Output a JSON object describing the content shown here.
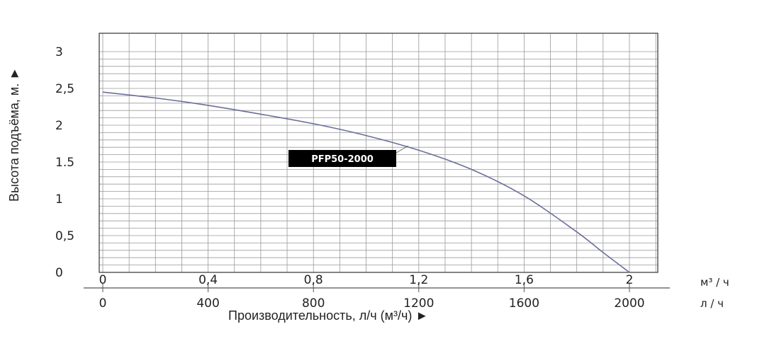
{
  "chart_data": {
    "type": "line",
    "ylabel": "Высота подъёма, м. ►",
    "xlabel": "Производительность, л/ч (м³/ч) ►",
    "x_unit_top": "м³ / ч",
    "x_unit_bottom": "л / ч",
    "ylim": [
      0,
      3
    ],
    "xlim": [
      0,
      2000
    ],
    "y_ticks": [
      {
        "value": 0,
        "label": "0"
      },
      {
        "value": 0.5,
        "label": "0,5"
      },
      {
        "value": 1,
        "label": "1"
      },
      {
        "value": 1.5,
        "label": "1.5"
      },
      {
        "value": 2,
        "label": "2"
      },
      {
        "value": 2.5,
        "label": "2,5"
      },
      {
        "value": 3,
        "label": "3"
      }
    ],
    "x_ticks_top": [
      {
        "value": 0,
        "label": "0"
      },
      {
        "value": 400,
        "label": "0,4"
      },
      {
        "value": 800,
        "label": "0,8"
      },
      {
        "value": 1200,
        "label": "1,2"
      },
      {
        "value": 1600,
        "label": "1,6"
      },
      {
        "value": 2000,
        "label": "2"
      }
    ],
    "x_ticks_bottom": [
      {
        "value": 0,
        "label": "0"
      },
      {
        "value": 400,
        "label": "400"
      },
      {
        "value": 800,
        "label": "800"
      },
      {
        "value": 1200,
        "label": "1200"
      },
      {
        "value": 1600,
        "label": "1600"
      },
      {
        "value": 2000,
        "label": "2000"
      }
    ],
    "grid": true,
    "series": [
      {
        "name": "PFP50-2000",
        "color": "#6b6f9a",
        "x": [
          0,
          200,
          400,
          600,
          800,
          1000,
          1200,
          1400,
          1600,
          1800,
          1900,
          2000
        ],
        "y": [
          2.45,
          2.37,
          2.27,
          2.15,
          2.02,
          1.86,
          1.66,
          1.4,
          1.04,
          0.55,
          0.27,
          0
        ]
      }
    ],
    "label_color": "#000000"
  }
}
